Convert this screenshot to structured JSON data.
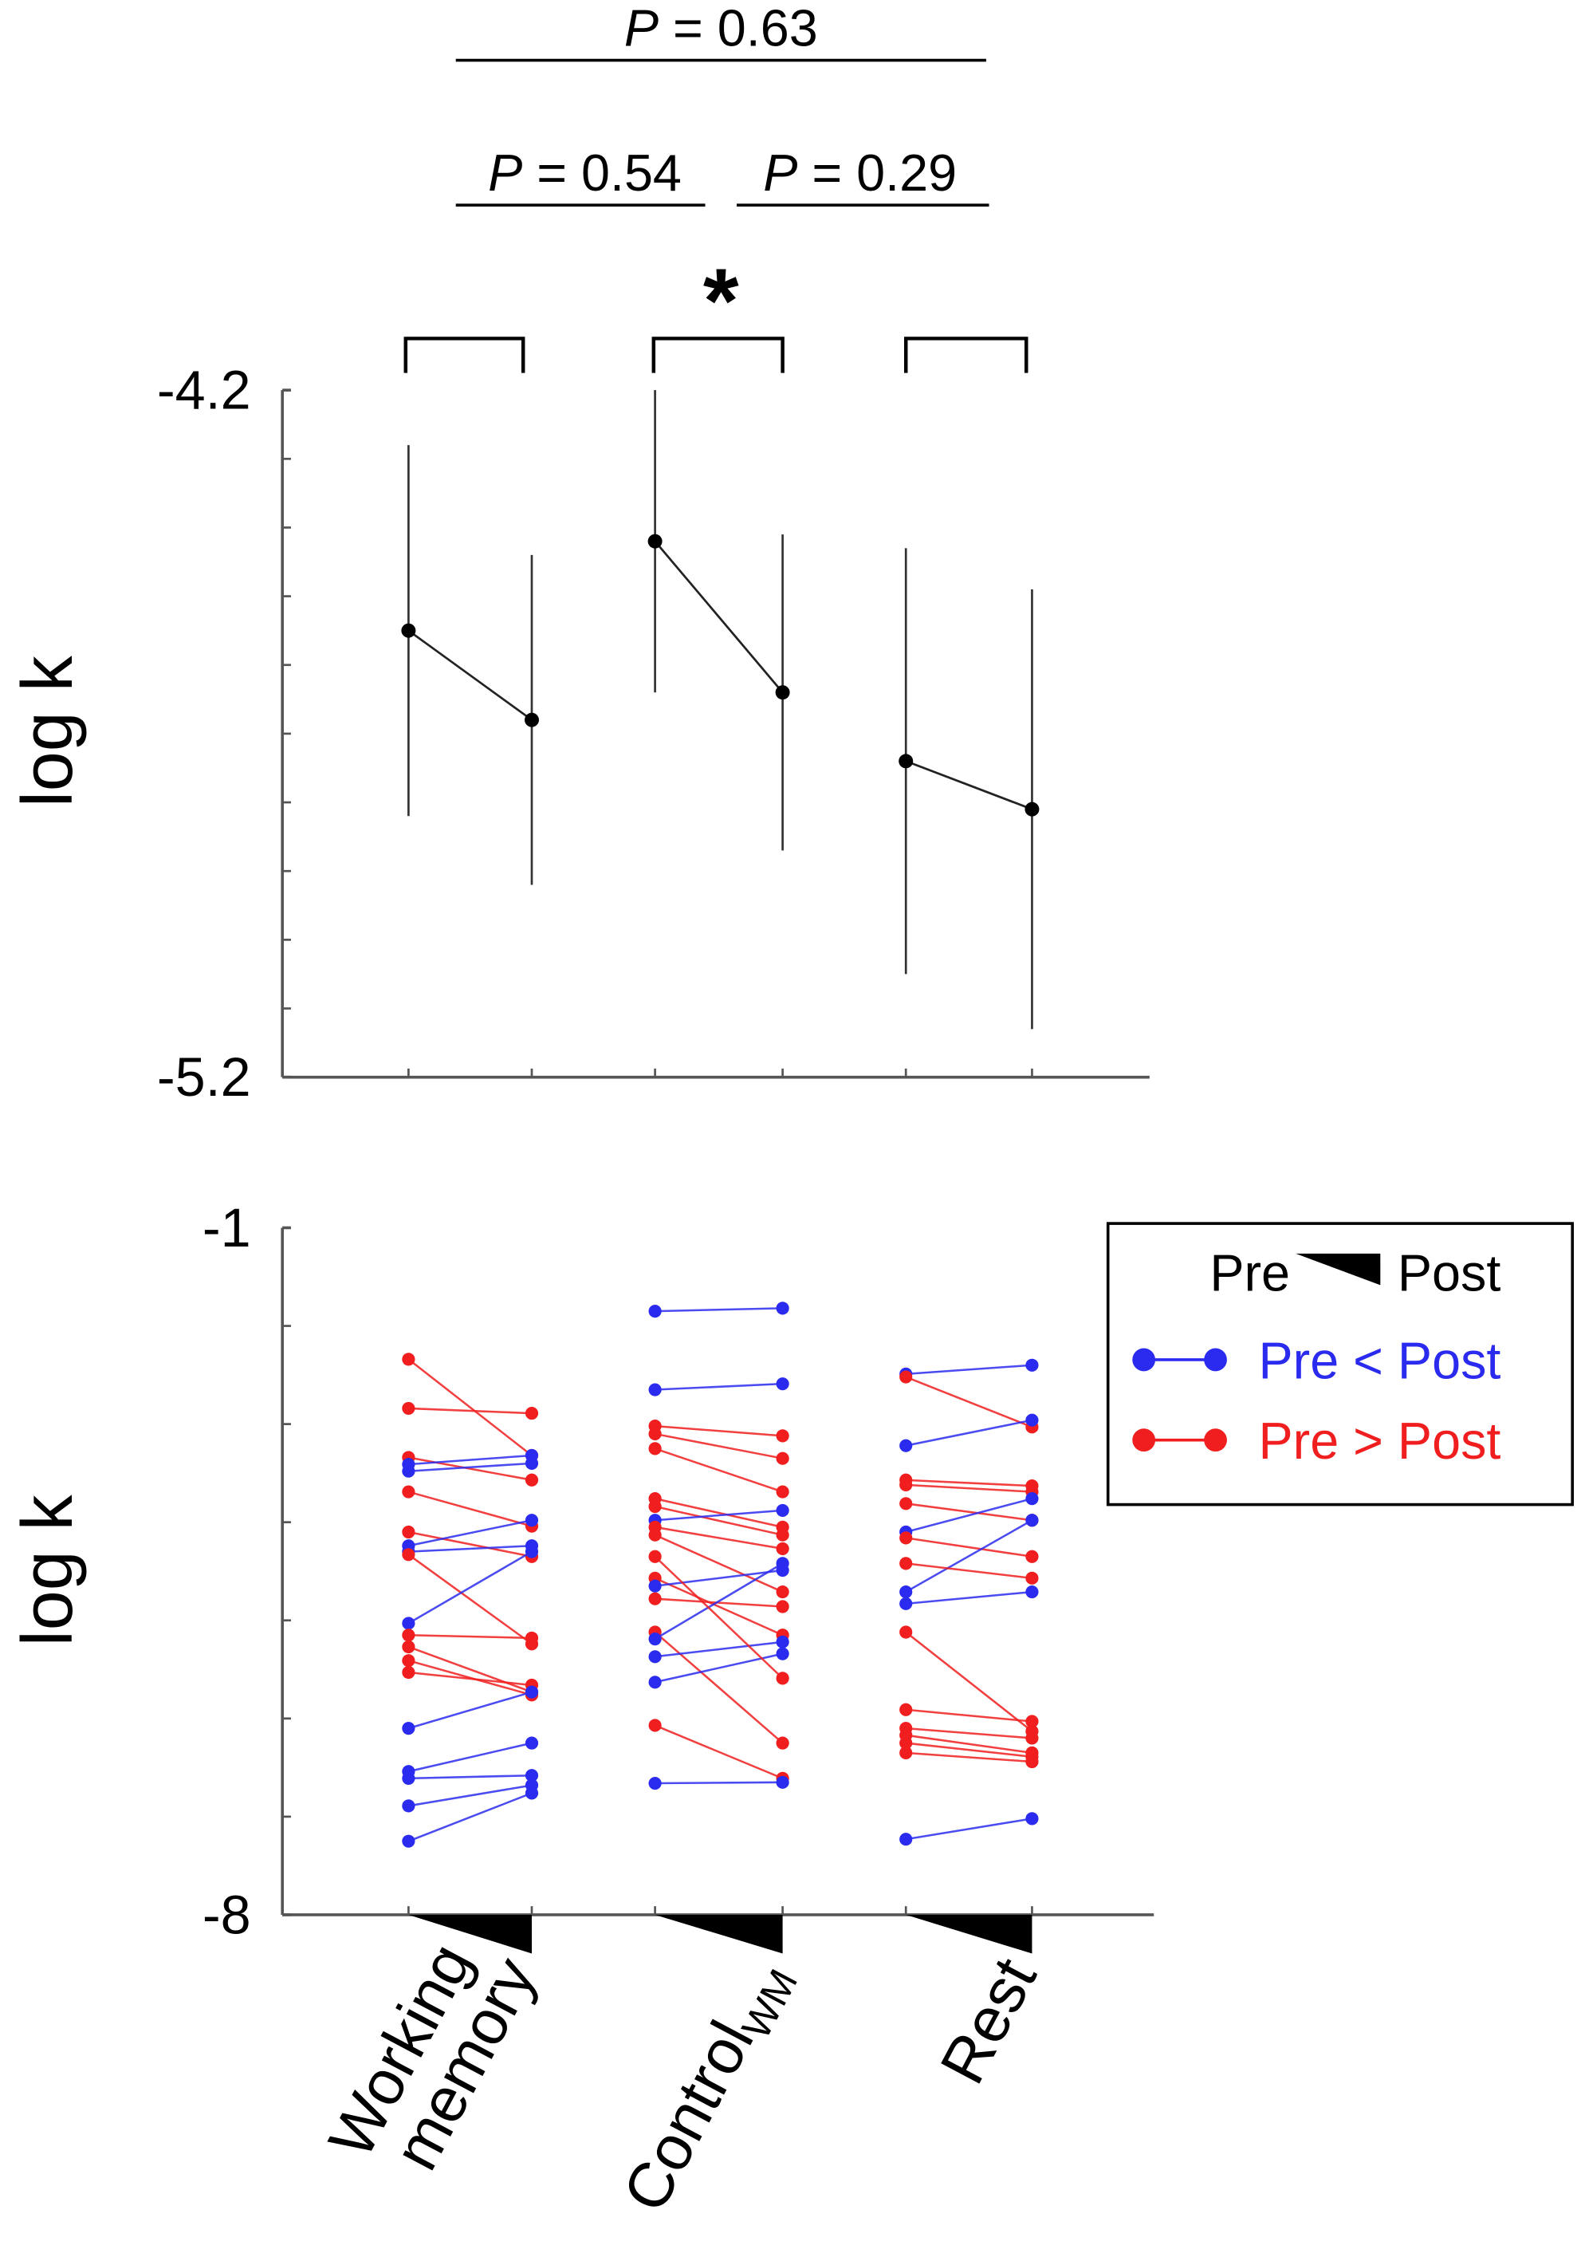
{
  "chart_data": [
    {
      "type": "line",
      "ylabel": "log k",
      "ylim": [
        -5.2,
        -4.2
      ],
      "yticks": [
        -4.2,
        -5.2
      ],
      "yminorticks": [
        -4.3,
        -4.4,
        -4.5,
        -4.6,
        -4.7,
        -4.8,
        -4.9,
        -5.0,
        -5.1
      ],
      "color": "#000000",
      "series": [
        {
          "values": [
            -4.55,
            -4.42,
            -4.74
          ],
          "errors": [
            0.27,
            0.22,
            0.31
          ]
        },
        {
          "values": [
            -4.68,
            -4.64,
            -4.81
          ],
          "errors": [
            0.24,
            0.23,
            0.32
          ]
        }
      ],
      "annotations": [
        "P = 0.63",
        "P = 0.54",
        "P = 0.29",
        "*"
      ]
    },
    {
      "type": "paired",
      "ylabel": "log k",
      "ylim": [
        -8,
        -1
      ],
      "yticks": [
        -1,
        -8
      ],
      "yminorticks": [
        -2,
        -3,
        -4,
        -5,
        -6,
        -7
      ],
      "categories": [
        "Working memory",
        "Control",
        "Rest"
      ],
      "category_subscripts": [
        null,
        "WM",
        null
      ],
      "legend_header": [
        "Pre",
        "Post"
      ],
      "legend": "upper right",
      "series": [
        {
          "name": "Pre < Post",
          "color": "#2b2bf0"
        },
        {
          "name": "Pre > Post",
          "color": "#f01e1e"
        }
      ],
      "subjects": [
        {
          "pre": [
            -2.34,
            -2.84,
            -3.34,
            -3.41,
            -3.48,
            -3.69,
            -4.1,
            -4.24,
            -4.3,
            -4.33,
            -5.03,
            -5.15,
            -5.27,
            -5.41,
            -5.53,
            -6.1,
            -6.54,
            -6.61,
            -6.89,
            -7.25
          ],
          "post": [
            -3.32,
            -2.89,
            -3.57,
            -3.32,
            -3.4,
            -4.04,
            -4.35,
            -3.98,
            -4.24,
            -5.24,
            -4.3,
            -5.18,
            -5.73,
            -5.76,
            -5.66,
            -5.73,
            -6.25,
            -6.58,
            -6.68,
            -6.76
          ]
        },
        {
          "pre": [
            -1.85,
            -2.65,
            -3.02,
            -3.1,
            -3.25,
            -3.76,
            -3.84,
            -3.98,
            -4.05,
            -4.13,
            -4.57,
            -4.65,
            -4.78,
            -5.12,
            -5.19,
            -5.37,
            -5.63,
            -6.07,
            -6.66,
            -4.35
          ],
          "post": [
            -1.82,
            -2.59,
            -3.12,
            -3.35,
            -3.69,
            -4.05,
            -4.13,
            -3.88,
            -4.27,
            -4.71,
            -5.15,
            -4.49,
            -4.86,
            -6.25,
            -4.42,
            -5.22,
            -5.34,
            -6.61,
            -6.65,
            -5.59
          ]
        },
        {
          "pre": [
            -2.49,
            -2.52,
            -3.22,
            -3.57,
            -3.62,
            -3.81,
            -4.1,
            -4.16,
            -4.71,
            -4.83,
            -5.12,
            -5.91,
            -6.1,
            -6.17,
            -6.25,
            -6.35,
            -7.23,
            -4.42
          ],
          "post": [
            -2.4,
            -3.03,
            -2.96,
            -3.63,
            -3.69,
            -3.98,
            -3.76,
            -4.35,
            -3.98,
            -4.71,
            -6.13,
            -6.03,
            -6.2,
            -6.35,
            -6.39,
            -6.44,
            -7.02,
            -4.57
          ]
        }
      ]
    }
  ]
}
